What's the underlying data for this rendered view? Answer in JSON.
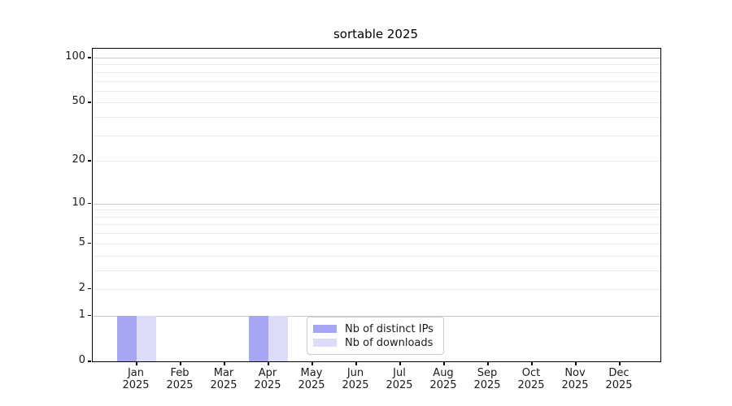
{
  "chart_data": {
    "type": "bar",
    "title": "sortable 2025",
    "categories": [
      {
        "label": "Jan",
        "sub": "2025"
      },
      {
        "label": "Feb",
        "sub": "2025"
      },
      {
        "label": "Mar",
        "sub": "2025"
      },
      {
        "label": "Apr",
        "sub": "2025"
      },
      {
        "label": "May",
        "sub": "2025"
      },
      {
        "label": "Jun",
        "sub": "2025"
      },
      {
        "label": "Jul",
        "sub": "2025"
      },
      {
        "label": "Aug",
        "sub": "2025"
      },
      {
        "label": "Sep",
        "sub": "2025"
      },
      {
        "label": "Oct",
        "sub": "2025"
      },
      {
        "label": "Nov",
        "sub": "2025"
      },
      {
        "label": "Dec",
        "sub": "2025"
      }
    ],
    "series": [
      {
        "name": "Nb of distinct IPs",
        "color": "#a6a6f2",
        "values": [
          1,
          0,
          0,
          1,
          0,
          0,
          0,
          0,
          0,
          0,
          0,
          0
        ]
      },
      {
        "name": "Nb of downloads",
        "color": "#dcdcf8",
        "values": [
          1,
          0,
          0,
          1,
          0,
          0,
          0,
          0,
          0,
          0,
          0,
          0
        ]
      }
    ],
    "yticks": [
      0,
      1,
      2,
      5,
      10,
      20,
      50,
      100
    ],
    "y_gridlines": {
      "major": [
        1,
        10,
        100
      ],
      "minor": [
        2,
        3,
        4,
        5,
        6,
        7,
        8,
        9,
        20,
        30,
        40,
        50,
        60,
        70,
        80,
        90
      ]
    },
    "scale": "log1p",
    "ylim": [
      0,
      115
    ],
    "xlabel": "",
    "ylabel": "",
    "grid": true,
    "legend_position": "lower center"
  },
  "colors": {
    "background": "#ffffff",
    "spine": "#000000",
    "grid_major": "#c9c9c9",
    "grid_minor": "#ebebeb",
    "text": "#1a1a1a",
    "legend_border": "#cccccc"
  }
}
